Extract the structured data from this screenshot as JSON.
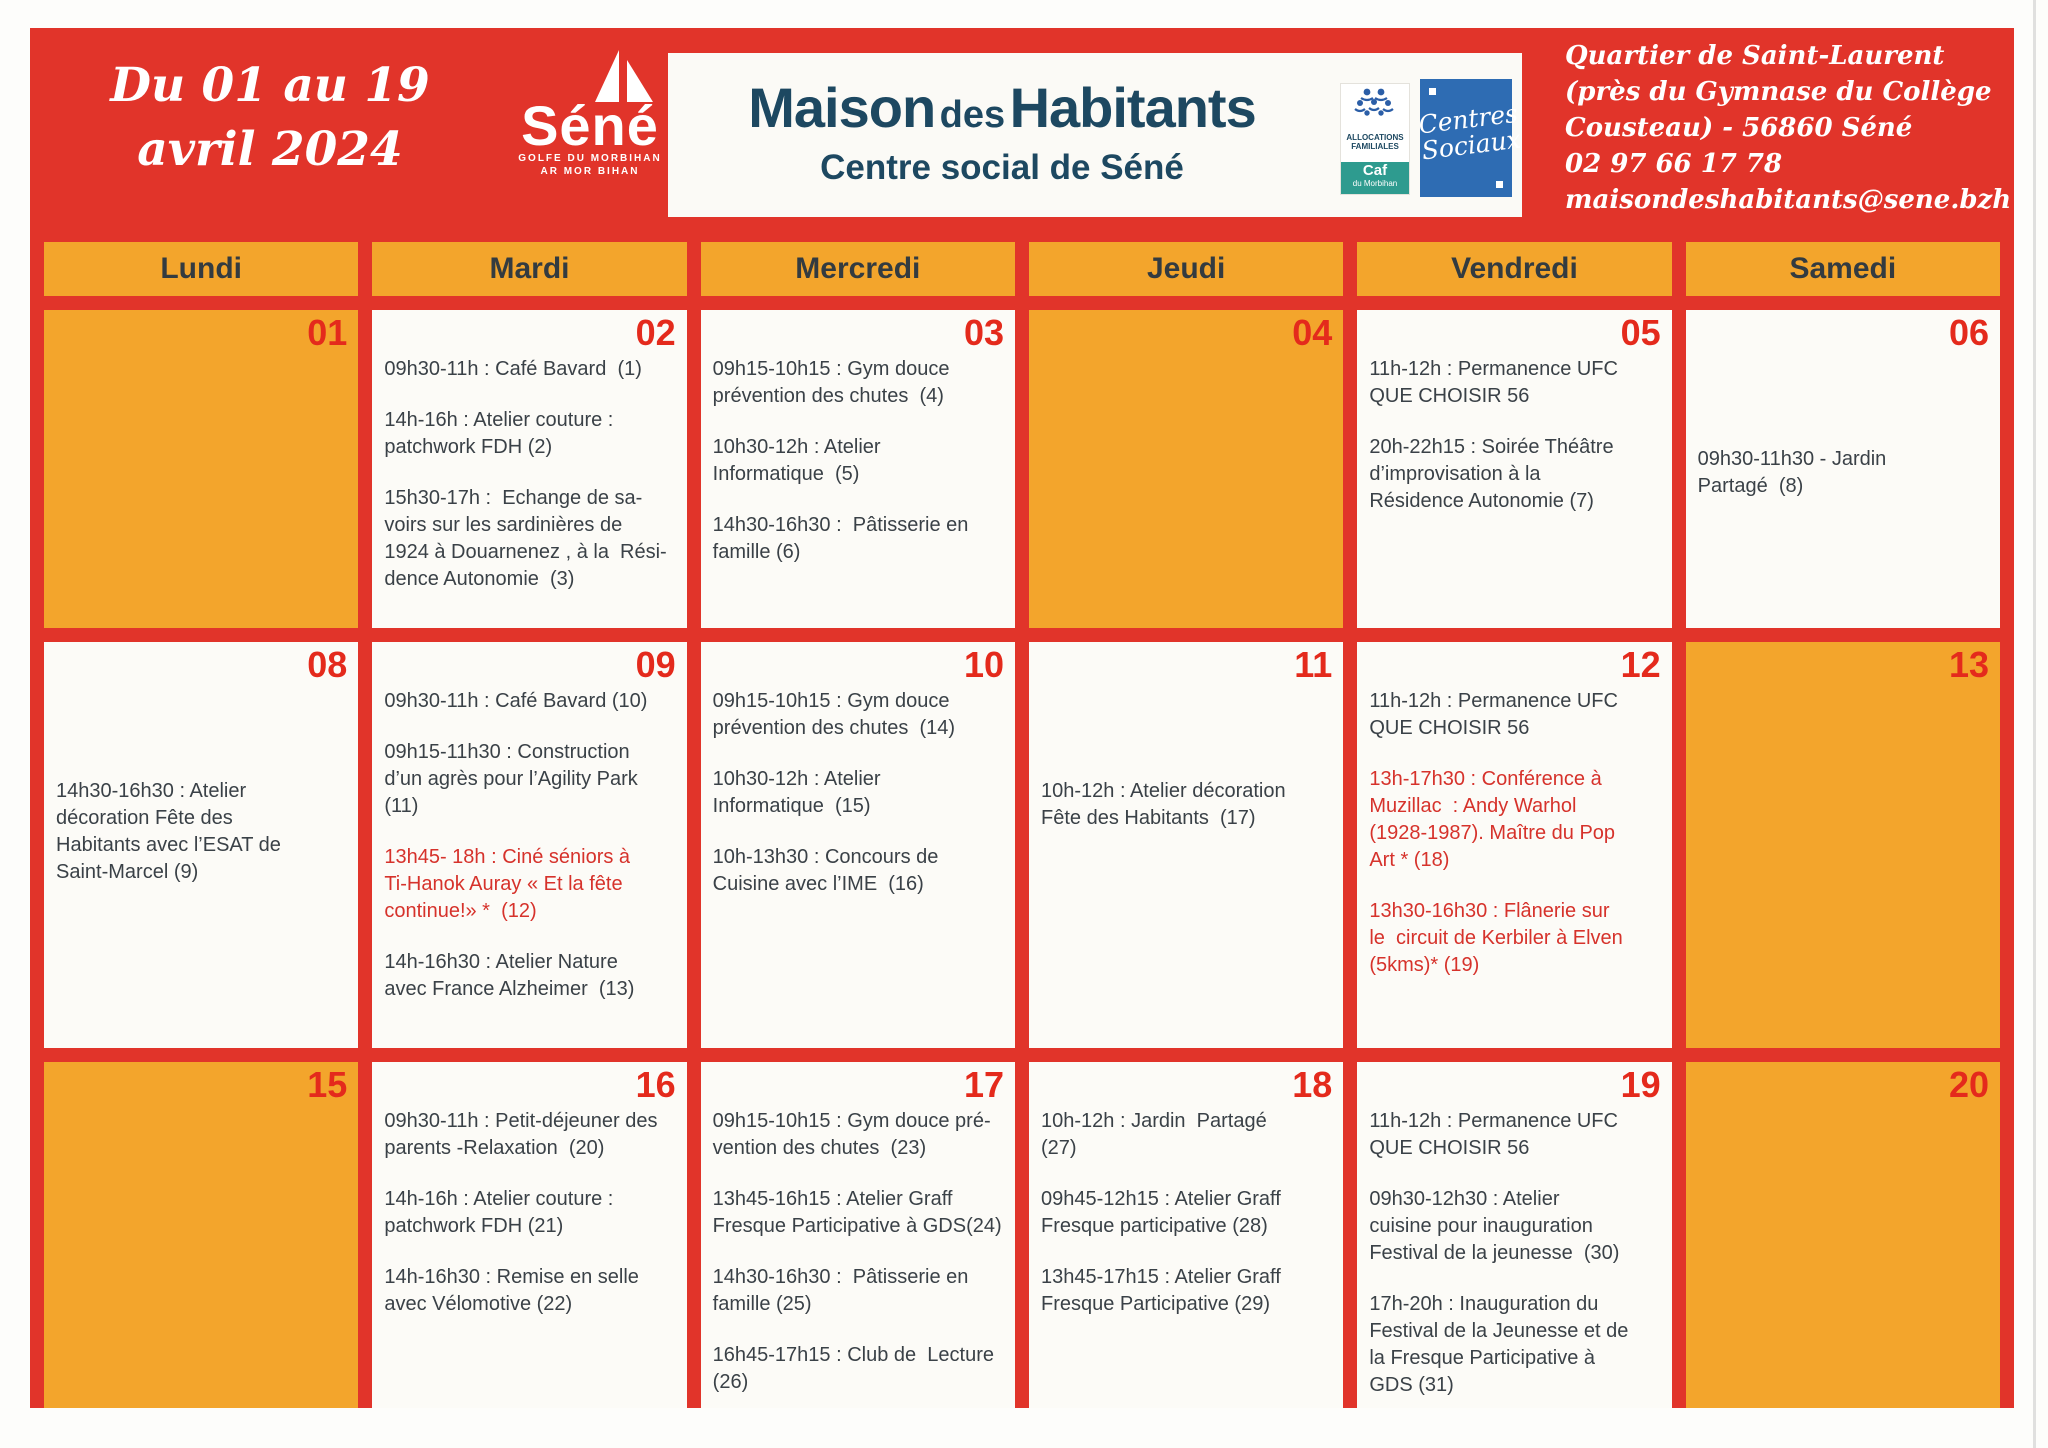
{
  "header": {
    "date_line1": "Du 01 au 19",
    "date_line2": "avril 2024",
    "sene_name": "Séné",
    "sene_tag1": "GOLFE DU MORBIHAN",
    "sene_tag2": "AR MOR BIHAN",
    "title_1": "Maison",
    "title_2": "des",
    "title_3": "Habitants",
    "subtitle": "Centre social de Séné",
    "caf": {
      "l1": "ALLOCATIONS",
      "l2": "FAMILIALES",
      "l3": "Caf",
      "l4": "du Morbihan"
    },
    "centres": {
      "l1": "Centres",
      "l2": "Sociaux"
    },
    "address": [
      "Quartier de Saint-Laurent",
      "(près du Gymnase du Collège",
      "Cousteau) - 56860 Séné",
      "02 97 66 17 78",
      "maisondeshabitants@sene.bzh"
    ]
  },
  "day_headers": [
    "Lundi",
    "Mardi",
    "Mercredi",
    "Jeudi",
    "Vendredi",
    "Samedi"
  ],
  "weeks": [
    [
      {
        "day": "01",
        "orange": true,
        "events": []
      },
      {
        "day": "02",
        "orange": false,
        "events": [
          {
            "text": "09h30-11h : Café Bavard  (1)"
          },
          {
            "text": "14h-16h : Atelier couture :\npatchwork FDH (2)"
          },
          {
            "text": "15h30-17h :  Echange de sa-\nvoirs sur les sardinières de\n1924 à Douarnenez , à la  Rési-\ndence Autonomie  (3)"
          }
        ]
      },
      {
        "day": "03",
        "orange": false,
        "events": [
          {
            "text": "09h15-10h15 : Gym douce\nprévention des chutes  (4)"
          },
          {
            "text": "10h30-12h : Atelier\nInformatique  (5)"
          },
          {
            "text": "14h30-16h30 :  Pâtisserie en\nfamille (6)"
          }
        ]
      },
      {
        "day": "04",
        "orange": true,
        "events": []
      },
      {
        "day": "05",
        "orange": false,
        "events": [
          {
            "text": "11h-12h : Permanence UFC\nQUE CHOISIR 56"
          },
          {
            "text": "20h-22h15 : Soirée Théâtre\nd’improvisation à la\nRésidence Autonomie (7)"
          }
        ]
      },
      {
        "day": "06",
        "orange": false,
        "events": [
          {
            "text": "09h30-11h30 - Jardin\nPartagé  (8)",
            "gap": true
          }
        ]
      }
    ],
    [
      {
        "day": "08",
        "orange": false,
        "events": [
          {
            "text": "14h30-16h30 : Atelier\ndécoration Fête des\nHabitants avec l’ESAT de\nSaint-Marcel (9)",
            "gap": true
          }
        ]
      },
      {
        "day": "09",
        "orange": false,
        "events": [
          {
            "text": "09h30-11h : Café Bavard (10)"
          },
          {
            "text": "09h15-11h30 : Construction\nd’un agrès pour l’Agility Park\n(11)"
          },
          {
            "text": "13h45- 18h : Ciné séniors à\nTi-Hanok Auray « Et la fête\ncontinue!» *  (12)",
            "red": true
          },
          {
            "text": "14h-16h30 : Atelier Nature\navec France Alzheimer  (13)"
          }
        ]
      },
      {
        "day": "10",
        "orange": false,
        "events": [
          {
            "text": "09h15-10h15 : Gym douce\nprévention des chutes  (14)"
          },
          {
            "text": "10h30-12h : Atelier\nInformatique  (15)"
          },
          {
            "text": "10h-13h30 : Concours de\nCuisine avec l’IME  (16)"
          }
        ]
      },
      {
        "day": "11",
        "orange": false,
        "events": [
          {
            "text": "10h-12h : Atelier décoration\nFête des Habitants  (17)",
            "gap": true
          }
        ]
      },
      {
        "day": "12",
        "orange": false,
        "events": [
          {
            "text": "11h-12h : Permanence UFC\nQUE CHOISIR 56"
          },
          {
            "text": "13h-17h30 : Conférence à\nMuzillac  : Andy Warhol\n(1928-1987). Maître du Pop\nArt * (18)",
            "red": true
          },
          {
            "text": "13h30-16h30 : Flânerie sur\nle  circuit de Kerbiler à Elven\n(5kms)* (19)",
            "red": true
          }
        ]
      },
      {
        "day": "13",
        "orange": true,
        "events": []
      }
    ],
    [
      {
        "day": "15",
        "orange": true,
        "events": []
      },
      {
        "day": "16",
        "orange": false,
        "events": [
          {
            "text": "09h30-11h : Petit-déjeuner des\nparents -Relaxation  (20)"
          },
          {
            "text": "14h-16h : Atelier couture :\npatchwork FDH (21)"
          },
          {
            "text": "14h-16h30 : Remise en selle\navec Vélomotive (22)"
          }
        ]
      },
      {
        "day": "17",
        "orange": false,
        "events": [
          {
            "text": "09h15-10h15 : Gym douce pré-\nvention des chutes  (23)"
          },
          {
            "text": "13h45-16h15 : Atelier Graff\nFresque Participative à GDS(24)"
          },
          {
            "text": "14h30-16h30 :  Pâtisserie en\nfamille (25)"
          },
          {
            "text": "16h45-17h15 : Club de  Lecture\n(26)"
          }
        ]
      },
      {
        "day": "18",
        "orange": false,
        "events": [
          {
            "text": "10h-12h : Jardin  Partagé\n(27)"
          },
          {
            "text": "09h45-12h15 : Atelier Graff\nFresque participative (28)"
          },
          {
            "text": "13h45-17h15 : Atelier Graff\nFresque Participative (29)"
          }
        ]
      },
      {
        "day": "19",
        "orange": false,
        "events": [
          {
            "text": "11h-12h : Permanence UFC\nQUE CHOISIR 56"
          },
          {
            "text": "09h30-12h30 : Atelier\ncuisine pour inauguration\nFestival de la jeunesse  (30)"
          },
          {
            "text": "17h-20h : Inauguration du\nFestival de la Jeunesse et de\nla Fresque Participative à\nGDS (31)"
          }
        ]
      },
      {
        "day": "20",
        "orange": true,
        "events": []
      }
    ]
  ],
  "colors": {
    "banner_red": "#e1342a",
    "cell_orange": "#f3a52c",
    "day_number_red": "#e42a1c",
    "event_text": "#3a4147",
    "event_highlight_red": "#d6322b",
    "title_navy": "#1d4861",
    "caf_teal": "#2e9b8f",
    "centres_blue": "#2e6cb3"
  }
}
